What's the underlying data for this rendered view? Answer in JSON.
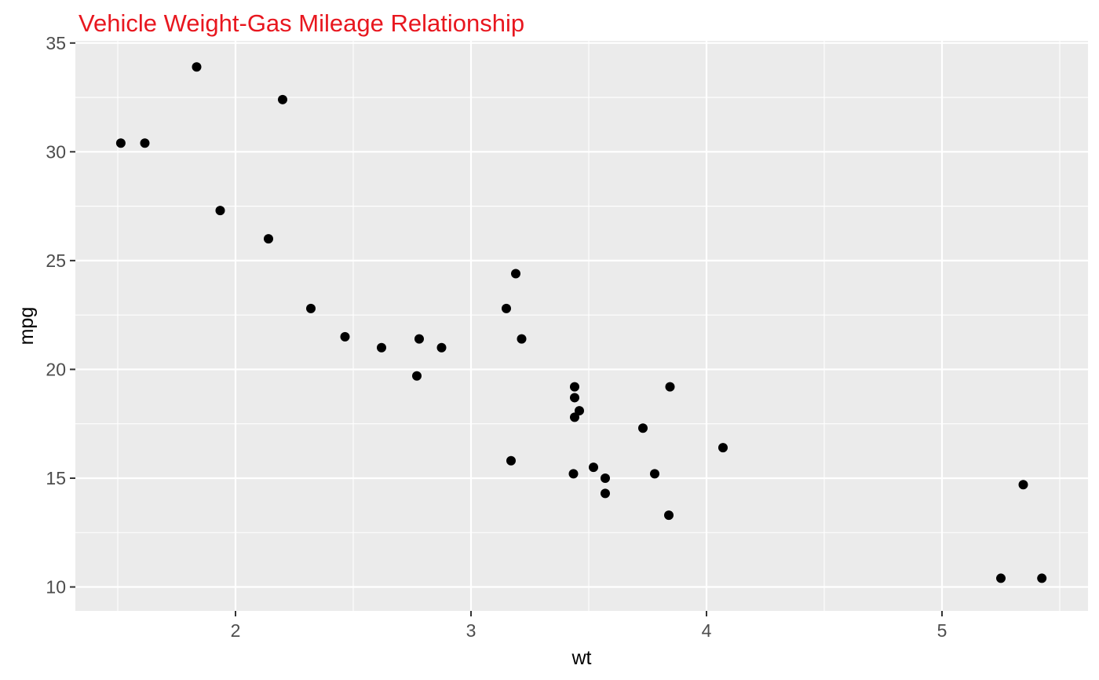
{
  "chart_data": {
    "type": "scatter",
    "title": "Vehicle Weight-Gas Mileage Relationship",
    "xlabel": "wt",
    "ylabel": "mpg",
    "xlim": [
      1.32,
      5.62
    ],
    "ylim": [
      8.9,
      35.1
    ],
    "x_ticks": [
      2,
      3,
      4,
      5
    ],
    "x_tick_labels": [
      "2",
      "3",
      "4",
      "5"
    ],
    "y_ticks": [
      10,
      15,
      20,
      25,
      30,
      35
    ],
    "y_tick_labels": [
      "10",
      "15",
      "20",
      "25",
      "30",
      "35"
    ],
    "grid": true,
    "points": [
      {
        "x": 2.62,
        "y": 21.0
      },
      {
        "x": 2.875,
        "y": 21.0
      },
      {
        "x": 2.32,
        "y": 22.8
      },
      {
        "x": 3.215,
        "y": 21.4
      },
      {
        "x": 3.44,
        "y": 18.7
      },
      {
        "x": 3.46,
        "y": 18.1
      },
      {
        "x": 3.57,
        "y": 14.3
      },
      {
        "x": 3.19,
        "y": 24.4
      },
      {
        "x": 3.15,
        "y": 22.8
      },
      {
        "x": 3.44,
        "y": 19.2
      },
      {
        "x": 3.44,
        "y": 17.8
      },
      {
        "x": 4.07,
        "y": 16.4
      },
      {
        "x": 3.73,
        "y": 17.3
      },
      {
        "x": 3.78,
        "y": 15.2
      },
      {
        "x": 5.25,
        "y": 10.4
      },
      {
        "x": 5.424,
        "y": 10.4
      },
      {
        "x": 5.345,
        "y": 14.7
      },
      {
        "x": 2.2,
        "y": 32.4
      },
      {
        "x": 1.615,
        "y": 30.4
      },
      {
        "x": 1.835,
        "y": 33.9
      },
      {
        "x": 2.465,
        "y": 21.5
      },
      {
        "x": 3.52,
        "y": 15.5
      },
      {
        "x": 3.435,
        "y": 15.2
      },
      {
        "x": 3.84,
        "y": 13.3
      },
      {
        "x": 3.845,
        "y": 19.2
      },
      {
        "x": 1.935,
        "y": 27.3
      },
      {
        "x": 2.14,
        "y": 26.0
      },
      {
        "x": 1.513,
        "y": 30.4
      },
      {
        "x": 3.17,
        "y": 15.8
      },
      {
        "x": 2.77,
        "y": 19.7
      },
      {
        "x": 3.57,
        "y": 15.0
      },
      {
        "x": 2.78,
        "y": 21.4
      }
    ],
    "colors": {
      "title": "#e8171f",
      "panel": "#ebebeb",
      "grid": "#ffffff",
      "point": "#000000",
      "tick": "#333333"
    }
  }
}
